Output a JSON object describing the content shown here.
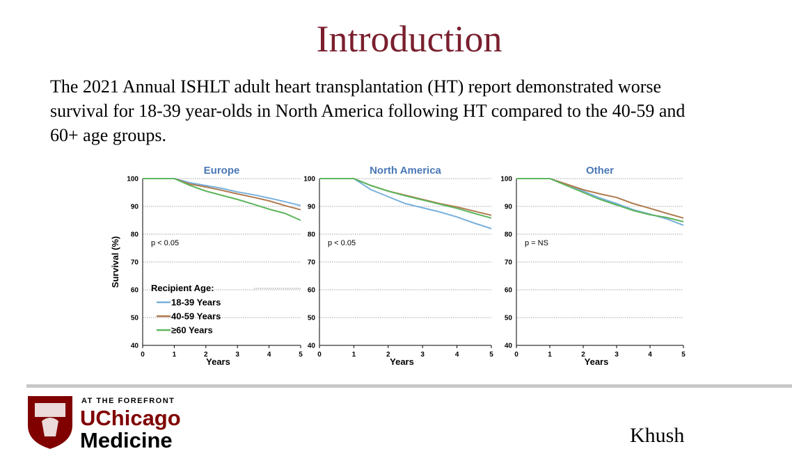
{
  "header": {
    "title": "Introduction"
  },
  "body": {
    "lines": [
      "The 2021 Annual ISHLT adult heart transplantation (HT) report demonstrated worse",
      "survival for 18-39 year-olds in North America following HT compared to the 40-59 and",
      "60+ age groups."
    ]
  },
  "chart_data": [
    {
      "type": "line",
      "title": "Europe",
      "xlabel": "Years",
      "ylabel": "Survival (%)",
      "annotation": "p < 0.05",
      "legend": "lower left",
      "legend_title": "Recipient Age:",
      "grid": true,
      "x": [
        0,
        1,
        1.5,
        2,
        2.5,
        3,
        3.5,
        4,
        4.5,
        5
      ],
      "xlim": [
        0,
        5
      ],
      "xticks": [
        0,
        1,
        2,
        3,
        4,
        5
      ],
      "ylim": [
        40,
        100
      ],
      "yticks": [
        40,
        50,
        60,
        70,
        80,
        90,
        100
      ],
      "series": [
        {
          "name": "18-39 Years",
          "color": "#78b0dc",
          "values": [
            100,
            100,
            98.5,
            97.5,
            96.5,
            95.2,
            94.2,
            93,
            91.7,
            90.3
          ]
        },
        {
          "name": "40-59 Years",
          "color": "#b07a4f",
          "values": [
            100,
            100,
            98,
            97,
            95.8,
            94.5,
            93.3,
            92,
            90.3,
            88.8
          ]
        },
        {
          "name": "≥60 Years",
          "color": "#5cb55c",
          "values": [
            100,
            100,
            97.5,
            95.5,
            94,
            92.5,
            90.8,
            89,
            87.5,
            85
          ]
        }
      ]
    },
    {
      "type": "line",
      "title": "North America",
      "xlabel": "Years",
      "annotation": "p < 0.05",
      "grid": true,
      "x": [
        0,
        1,
        1.5,
        2,
        2.5,
        3,
        3.5,
        4,
        4.5,
        5
      ],
      "xlim": [
        0,
        5
      ],
      "xticks": [
        0,
        1,
        2,
        3,
        4,
        5
      ],
      "ylim": [
        40,
        100
      ],
      "yticks": [
        40,
        50,
        60,
        70,
        80,
        90,
        100
      ],
      "series": [
        {
          "color": "#78b0dc",
          "values": [
            100,
            100,
            96,
            93.5,
            91,
            89.5,
            88,
            86.2,
            84,
            82
          ]
        },
        {
          "color": "#b07a4f",
          "values": [
            100,
            100,
            97.5,
            95.5,
            94,
            92.5,
            91,
            89.8,
            88.3,
            86.8
          ]
        },
        {
          "color": "#5cb55c",
          "values": [
            100,
            100,
            97.5,
            95.5,
            93.8,
            92.3,
            90.8,
            89.3,
            87.5,
            85.8
          ]
        }
      ]
    },
    {
      "type": "line",
      "title": "Other",
      "xlabel": "Years",
      "annotation": "p = NS",
      "grid": true,
      "x": [
        0,
        1,
        1.5,
        2,
        2.5,
        3,
        3.5,
        4,
        4.5,
        5
      ],
      "xlim": [
        0,
        5
      ],
      "xticks": [
        0,
        1,
        2,
        3,
        4,
        5
      ],
      "ylim": [
        40,
        100
      ],
      "yticks": [
        40,
        50,
        60,
        70,
        80,
        90,
        100
      ],
      "series": [
        {
          "color": "#78b0dc",
          "values": [
            100,
            100,
            98,
            95.5,
            93,
            91,
            88.8,
            87.2,
            85.5,
            83.2
          ]
        },
        {
          "color": "#b07a4f",
          "values": [
            100,
            100,
            98,
            96,
            94.5,
            93.2,
            91,
            89.3,
            87.5,
            85.8
          ]
        },
        {
          "color": "#5cb55c",
          "values": [
            100,
            100,
            97.5,
            95,
            92.5,
            90.5,
            88.5,
            87,
            86,
            84.5
          ]
        }
      ]
    }
  ],
  "footer": {
    "tagline": "AT THE FOREFRONT",
    "logo_line1": "UChicago",
    "logo_line2": "Medicine",
    "author": "Khush"
  }
}
